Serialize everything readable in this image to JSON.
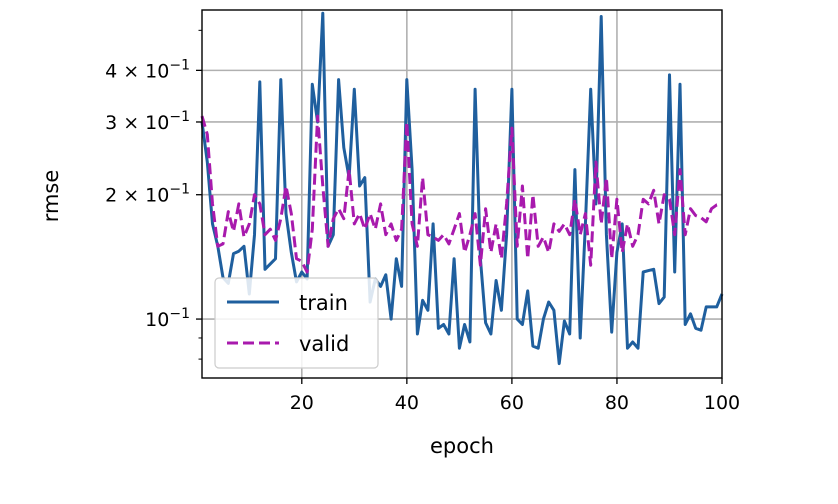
{
  "chart_data": {
    "type": "line",
    "title": "",
    "xlabel": "epoch",
    "ylabel": "rmse",
    "xlim": [
      1,
      100
    ],
    "ylim": [
      0.072,
      0.56
    ],
    "yscale": "log",
    "grid": "x-major and y-major",
    "legend_position": "lower-left",
    "x_ticks": [
      20,
      40,
      60,
      80,
      100
    ],
    "x_tick_labels": [
      "20",
      "40",
      "60",
      "80",
      "100"
    ],
    "y_ticks": [
      {
        "value": 0.1,
        "base": "10",
        "exp": "−1",
        "kind": "power"
      },
      {
        "value": 0.2,
        "coef": "2",
        "base": "10",
        "exp": "−1",
        "kind": "coef"
      },
      {
        "value": 0.3,
        "coef": "3",
        "base": "10",
        "exp": "−1",
        "kind": "coef"
      },
      {
        "value": 0.4,
        "coef": "4",
        "base": "10",
        "exp": "−1",
        "kind": "coef"
      }
    ],
    "y_minor_ticks": [
      0.08,
      0.09,
      0.5
    ],
    "series": [
      {
        "name": "train",
        "color": "#1f5f9e",
        "dash": "solid",
        "x": [
          1,
          2,
          3,
          4,
          5,
          6,
          7,
          8,
          9,
          10,
          11,
          12,
          13,
          14,
          15,
          16,
          17,
          18,
          19,
          20,
          21,
          22,
          23,
          24,
          25,
          26,
          27,
          28,
          29,
          30,
          31,
          32,
          33,
          34,
          35,
          36,
          37,
          38,
          39,
          40,
          41,
          42,
          43,
          44,
          45,
          46,
          47,
          48,
          49,
          50,
          51,
          52,
          53,
          54,
          55,
          56,
          57,
          58,
          59,
          60,
          61,
          62,
          63,
          64,
          65,
          66,
          67,
          68,
          69,
          70,
          71,
          72,
          73,
          74,
          75,
          76,
          77,
          78,
          79,
          80,
          81,
          82,
          83,
          84,
          85,
          86,
          87,
          88,
          89,
          90,
          91,
          92,
          93,
          94,
          95,
          96,
          97,
          98,
          99,
          100
        ],
        "values": [
          0.3,
          0.24,
          0.17,
          0.15,
          0.126,
          0.122,
          0.144,
          0.146,
          0.15,
          0.115,
          0.16,
          0.375,
          0.132,
          0.136,
          0.14,
          0.38,
          0.18,
          0.145,
          0.123,
          0.13,
          0.125,
          0.37,
          0.3,
          0.55,
          0.15,
          0.16,
          0.38,
          0.26,
          0.22,
          0.36,
          0.21,
          0.22,
          0.11,
          0.125,
          0.12,
          0.128,
          0.1,
          0.14,
          0.12,
          0.38,
          0.23,
          0.092,
          0.111,
          0.105,
          0.17,
          0.095,
          0.097,
          0.092,
          0.14,
          0.085,
          0.097,
          0.088,
          0.36,
          0.14,
          0.098,
          0.092,
          0.124,
          0.105,
          0.16,
          0.36,
          0.1,
          0.097,
          0.117,
          0.086,
          0.085,
          0.1,
          0.11,
          0.105,
          0.078,
          0.099,
          0.092,
          0.23,
          0.09,
          0.17,
          0.36,
          0.19,
          0.54,
          0.16,
          0.093,
          0.145,
          0.17,
          0.085,
          0.088,
          0.085,
          0.13,
          0.131,
          0.132,
          0.109,
          0.113,
          0.39,
          0.13,
          0.37,
          0.097,
          0.103,
          0.095,
          0.094,
          0.107,
          0.107,
          0.107,
          0.115
        ]
      },
      {
        "name": "valid",
        "color": "#a81aad",
        "dash": "dashed",
        "x": [
          1,
          2,
          3,
          4,
          5,
          6,
          7,
          8,
          9,
          10,
          11,
          12,
          13,
          14,
          15,
          16,
          17,
          18,
          19,
          20,
          21,
          22,
          23,
          24,
          25,
          26,
          27,
          28,
          29,
          30,
          31,
          32,
          33,
          34,
          35,
          36,
          37,
          38,
          39,
          40,
          41,
          42,
          43,
          44,
          45,
          46,
          47,
          48,
          49,
          50,
          51,
          52,
          53,
          54,
          55,
          56,
          57,
          58,
          59,
          60,
          61,
          62,
          63,
          64,
          65,
          66,
          67,
          68,
          69,
          70,
          71,
          72,
          73,
          74,
          75,
          76,
          77,
          78,
          79,
          80,
          81,
          82,
          83,
          84,
          85,
          86,
          87,
          88,
          89,
          90,
          91,
          92,
          93,
          94,
          95,
          96,
          97,
          98,
          99,
          100
        ],
        "values": [
          0.31,
          0.28,
          0.19,
          0.15,
          0.152,
          0.182,
          0.163,
          0.19,
          0.158,
          0.17,
          0.2,
          0.19,
          0.16,
          0.165,
          0.155,
          0.175,
          0.21,
          0.18,
          0.14,
          0.138,
          0.13,
          0.165,
          0.31,
          0.21,
          0.15,
          0.175,
          0.185,
          0.175,
          0.23,
          0.17,
          0.18,
          0.165,
          0.18,
          0.165,
          0.19,
          0.16,
          0.17,
          0.155,
          0.165,
          0.3,
          0.17,
          0.15,
          0.22,
          0.16,
          0.158,
          0.155,
          0.16,
          0.152,
          0.165,
          0.18,
          0.145,
          0.16,
          0.18,
          0.135,
          0.185,
          0.145,
          0.17,
          0.14,
          0.19,
          0.29,
          0.15,
          0.21,
          0.14,
          0.2,
          0.15,
          0.158,
          0.145,
          0.17,
          0.163,
          0.17,
          0.16,
          0.195,
          0.16,
          0.18,
          0.135,
          0.24,
          0.17,
          0.22,
          0.14,
          0.195,
          0.145,
          0.17,
          0.15,
          0.16,
          0.195,
          0.19,
          0.205,
          0.17,
          0.2,
          0.195,
          0.16,
          0.23,
          0.16,
          0.185,
          0.178,
          0.176,
          0.172,
          0.185,
          0.189,
          0.19
        ]
      }
    ]
  }
}
